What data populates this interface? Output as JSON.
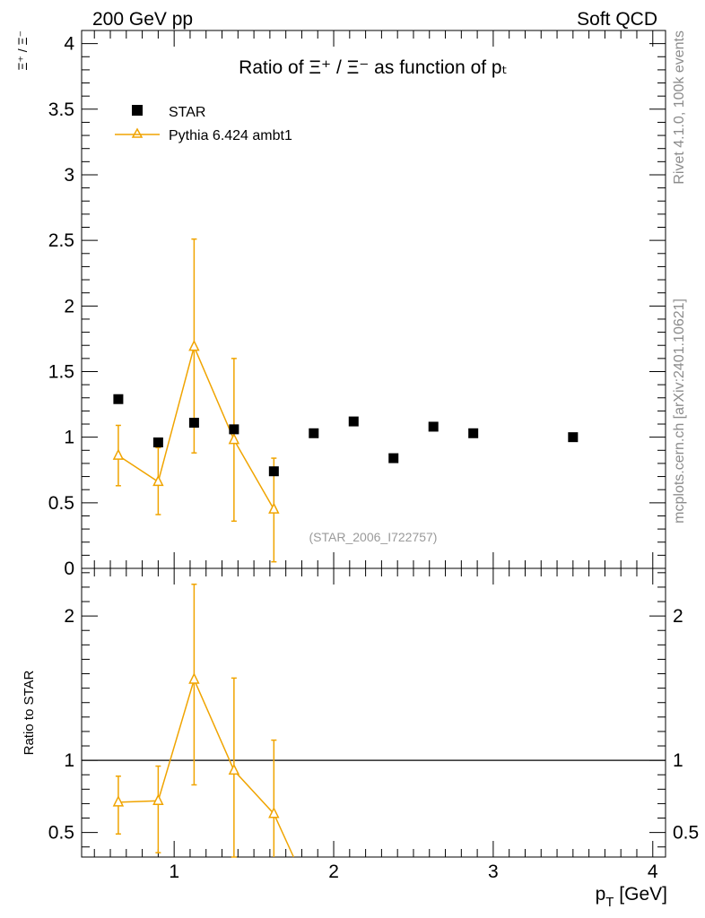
{
  "header": {
    "left": "200 GeV pp",
    "right": "Soft QCD"
  },
  "side_text": {
    "top": "Rivet 4.1.0,  100k events",
    "bottom": "mcplots.cern.ch [arXiv:2401.10621]"
  },
  "colors": {
    "data": "#000000",
    "mc": "#f0a400",
    "side": "#8c8c8c"
  },
  "chart_data": [
    {
      "type": "scatter",
      "title": "Ratio of Ξ⁺ / Ξ⁻ as function of pₜ",
      "xlabel": "p_T [GeV]",
      "ylabel": "Ξ⁺ / Ξ⁻",
      "xlim": [
        0.42,
        4.08
      ],
      "ylim": [
        0,
        4.1
      ],
      "grid": false,
      "legend_position": "top-left",
      "watermark": "(STAR_2006_I722757)",
      "x_ticks": [
        1,
        2,
        3,
        4
      ],
      "y_ticks": [
        0,
        0.5,
        1,
        1.5,
        2,
        2.5,
        3,
        3.5,
        4
      ],
      "series": [
        {
          "name": "STAR",
          "marker": "square",
          "x": [
            0.65,
            0.9,
            1.125,
            1.375,
            1.625,
            1.875,
            2.125,
            2.375,
            2.625,
            2.875,
            3.5
          ],
          "y": [
            1.29,
            0.96,
            1.11,
            1.06,
            0.74,
            1.03,
            1.12,
            0.84,
            1.08,
            1.03,
            1.0
          ]
        },
        {
          "name": "Pythia 6.424 ambt1",
          "marker": "open-triangle",
          "x": [
            0.65,
            0.9,
            1.125,
            1.375,
            1.625
          ],
          "y": [
            0.86,
            0.66,
            1.69,
            0.98,
            0.45
          ],
          "err_low": [
            0.23,
            0.25,
            0.81,
            0.62,
            0.4
          ],
          "err_high": [
            0.23,
            0.26,
            0.82,
            0.62,
            0.39
          ]
        }
      ]
    },
    {
      "type": "line",
      "ylabel": "Ratio to STAR",
      "xlabel": "p_T [GeV]",
      "xlim": [
        0.42,
        4.08
      ],
      "ylim": [
        0.33,
        2.33
      ],
      "y_ticks": [
        0.5,
        1,
        2
      ],
      "y_tick_labels": [
        "0.5",
        "1",
        "2"
      ],
      "reference_line": 1,
      "series": [
        {
          "name": "Pythia 6.424 ambt1",
          "x": [
            0.65,
            0.9,
            1.125,
            1.375,
            1.625
          ],
          "y": [
            0.71,
            0.72,
            1.56,
            0.93,
            0.63
          ],
          "err_low": [
            0.22,
            0.36,
            0.73,
            0.6,
            0.63
          ],
          "err_high": [
            0.18,
            0.24,
            0.66,
            0.64,
            0.51
          ]
        }
      ]
    }
  ]
}
